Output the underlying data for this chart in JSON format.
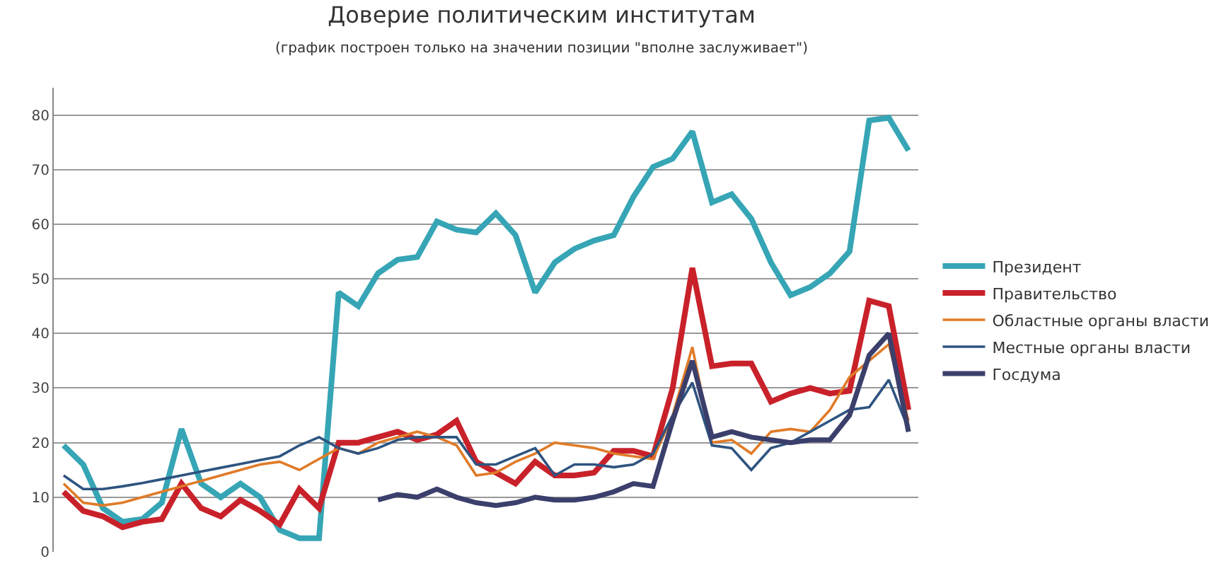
{
  "chart_data": {
    "type": "line",
    "title": "Доверие политическим институтам",
    "subtitle": "(график построен только на значении позиции \"вполне заслуживает\")",
    "categories": [
      null,
      null,
      null,
      null,
      null,
      null,
      null,
      null,
      null,
      null,
      null,
      null,
      null,
      null,
      null,
      null,
      null,
      null,
      null,
      null,
      null,
      null,
      null,
      null,
      null,
      null,
      null,
      null,
      null,
      null,
      null,
      null,
      null,
      null,
      null,
      null,
      null,
      null,
      null,
      null,
      null,
      null,
      null,
      null
    ],
    "series": [
      {
        "name": "Президент",
        "color": "#36a5b5",
        "values": [
          19.5,
          16,
          8,
          5.5,
          6,
          9,
          22.5,
          12.5,
          10,
          12.5,
          10,
          4,
          2.5,
          2.5,
          47.5,
          45,
          51,
          53.5,
          54,
          60.5,
          59,
          58.5,
          62,
          58,
          47.5,
          53,
          55.5,
          57,
          58,
          65,
          70.5,
          72,
          77,
          64,
          65.5,
          61,
          53,
          47,
          48.5,
          51,
          55,
          79,
          79.5,
          73.5
        ]
      },
      {
        "name": "Правительство",
        "color": "#c9212a",
        "values": [
          11,
          7.5,
          6.5,
          4.5,
          5.5,
          6,
          12.5,
          8,
          6.5,
          9.5,
          7.5,
          5,
          11.5,
          8,
          20,
          20,
          21,
          22,
          20.5,
          21.5,
          24,
          16.5,
          14.5,
          12.5,
          16.5,
          14,
          14,
          14.5,
          18.5,
          18.5,
          17.5,
          30,
          52,
          34,
          34.5,
          34.5,
          27.5,
          29,
          30,
          29,
          29.5,
          46,
          45,
          26
        ]
      },
      {
        "name": "Областные органы власти",
        "color": "#e07b28",
        "values": [
          12.5,
          9,
          8.5,
          9,
          10,
          11,
          12,
          13,
          14,
          15,
          16,
          16.5,
          15,
          17,
          19,
          18,
          20,
          21,
          22,
          21,
          19.5,
          14,
          14.5,
          16.5,
          18,
          20,
          19.5,
          19,
          18,
          17.5,
          17,
          25,
          37.5,
          20,
          20.5,
          18,
          22,
          22.5,
          22,
          26,
          32,
          35,
          38,
          24
        ]
      },
      {
        "name": "Местные органы власти",
        "color": "#2e5480",
        "values": [
          14,
          11.5,
          11.5,
          12,
          12.6,
          13.3,
          14,
          14.7,
          15.4,
          16.1,
          16.8,
          17.5,
          19.5,
          21,
          19,
          18,
          19,
          20.5,
          21,
          21,
          21,
          16,
          16,
          17.5,
          19,
          14,
          16,
          16,
          15.5,
          16,
          18,
          25,
          31,
          19.5,
          19,
          15,
          19,
          20,
          22,
          24,
          26,
          26.5,
          31.5,
          22.5
        ]
      },
      {
        "name": "Госдума",
        "color": "#3b3f6b",
        "values": [
          null,
          null,
          null,
          null,
          null,
          null,
          null,
          null,
          null,
          null,
          null,
          null,
          null,
          null,
          null,
          null,
          9.5,
          10.5,
          10,
          11.5,
          10,
          9,
          8.5,
          9,
          10,
          9.5,
          9.5,
          10,
          11,
          12.5,
          12,
          24,
          35,
          21,
          22,
          21,
          20.5,
          20,
          20.5,
          20.5,
          25,
          36,
          40,
          22
        ]
      }
    ],
    "ylim": [
      0,
      85
    ],
    "yticks": [
      0,
      10,
      20,
      30,
      40,
      50,
      60,
      70,
      80
    ],
    "grid": "y",
    "legend": "right",
    "tick_labels": "y",
    "marker": "none",
    "line_style": "solid"
  }
}
